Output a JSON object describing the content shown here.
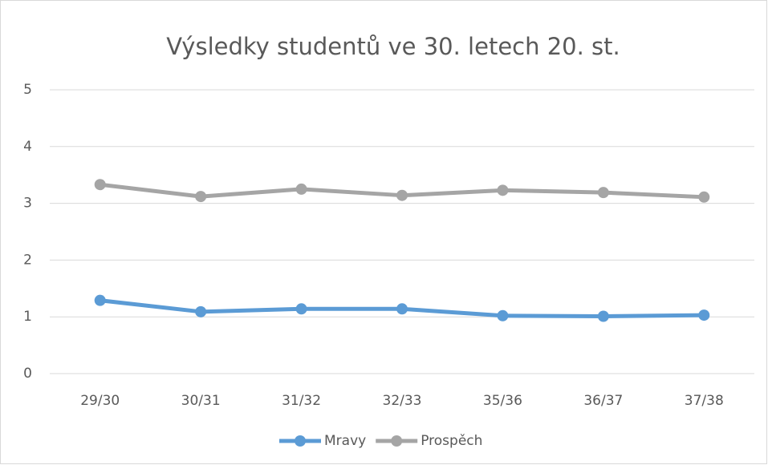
{
  "chart_data": {
    "type": "line",
    "title": "Výsledky studentů ve 30. letech 20. st.",
    "categories": [
      "29/30",
      "30/31",
      "31/32",
      "32/33",
      "35/36",
      "36/37",
      "37/38"
    ],
    "series": [
      {
        "name": "Mravy",
        "color": "#5b9bd5",
        "values": [
          1.29,
          1.09,
          1.14,
          1.14,
          1.02,
          1.01,
          1.03
        ]
      },
      {
        "name": "Prospěch",
        "color": "#a5a5a5",
        "values": [
          3.33,
          3.12,
          3.25,
          3.14,
          3.23,
          3.19,
          3.11
        ]
      }
    ],
    "ylim": [
      0,
      5
    ],
    "yticks": [
      0,
      1,
      2,
      3,
      4,
      5
    ],
    "grid": true,
    "legend": "bottom"
  }
}
